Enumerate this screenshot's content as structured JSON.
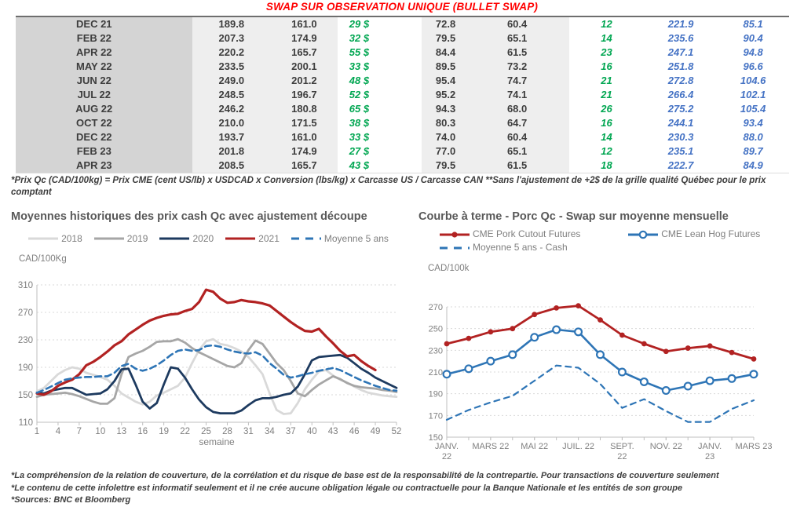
{
  "table": {
    "title": "SWAP SUR OBSERVATION UNIQUE (BULLET SWAP)",
    "rows": [
      {
        "month": "DEC 21",
        "cells": [
          "189.8",
          "161.0",
          "29 $",
          "72.8",
          "60.4",
          "12",
          "221.9",
          "85.1"
        ]
      },
      {
        "month": "FEB 22",
        "cells": [
          "207.3",
          "174.9",
          "32 $",
          "79.5",
          "65.1",
          "14",
          "235.6",
          "90.4"
        ]
      },
      {
        "month": "APR 22",
        "cells": [
          "220.2",
          "165.7",
          "55 $",
          "84.4",
          "61.5",
          "23",
          "247.1",
          "94.8"
        ]
      },
      {
        "month": "MAY 22",
        "cells": [
          "233.5",
          "200.1",
          "33 $",
          "89.5",
          "73.2",
          "16",
          "251.8",
          "96.6"
        ]
      },
      {
        "month": "JUN 22",
        "cells": [
          "249.0",
          "201.2",
          "48 $",
          "95.4",
          "74.7",
          "21",
          "272.8",
          "104.6"
        ]
      },
      {
        "month": "JUL 22",
        "cells": [
          "248.5",
          "196.7",
          "52 $",
          "95.2",
          "74.1",
          "21",
          "266.4",
          "102.1"
        ]
      },
      {
        "month": "AUG 22",
        "cells": [
          "246.2",
          "180.8",
          "65 $",
          "94.3",
          "68.0",
          "26",
          "275.2",
          "105.4"
        ]
      },
      {
        "month": "OCT 22",
        "cells": [
          "210.0",
          "171.5",
          "38 $",
          "80.3",
          "64.7",
          "16",
          "244.1",
          "93.4"
        ]
      },
      {
        "month": "DEC 22",
        "cells": [
          "193.7",
          "161.0",
          "33 $",
          "74.0",
          "60.4",
          "14",
          "230.3",
          "88.0"
        ]
      },
      {
        "month": "FEB 23",
        "cells": [
          "201.8",
          "174.9",
          "27 $",
          "77.0",
          "65.1",
          "12",
          "235.1",
          "89.7"
        ]
      },
      {
        "month": "APR 23",
        "cells": [
          "208.5",
          "165.7",
          "43 $",
          "79.5",
          "61.5",
          "18",
          "222.7",
          "84.9"
        ]
      }
    ],
    "footnote": "*Prix Qc (CAD/100kg) = Prix CME (cent US/lb) x USDCAD x Conversion (lbs/kg) x Carcasse US / Carcasse CAN **Sans l'ajustement de +2$ de la grille qualité Québec pour le prix comptant"
  },
  "colors": {
    "title_red": "#ff0000",
    "table_green": "#00a651",
    "table_blue": "#4472c4",
    "axis_gray": "#bfbfbf",
    "grid_gray": "#d9d9d9"
  },
  "chart_data": [
    {
      "type": "line",
      "title": "Moyennes historiques des prix cash Qc avec ajustement découpe",
      "unit_label": "CAD/100Kg",
      "xlabel": "semaine",
      "xmin": 1,
      "xmax": 52,
      "xticks": [
        1,
        4,
        7,
        10,
        13,
        16,
        19,
        22,
        25,
        28,
        31,
        34,
        37,
        40,
        43,
        46,
        49,
        52
      ],
      "ylim": [
        110,
        310
      ],
      "yticks": [
        110,
        150,
        190,
        230,
        270,
        310
      ],
      "grid": "dashed-horizontal",
      "legend_position": "top-center",
      "series": [
        {
          "name": "2018",
          "color": "#d9d9d9",
          "width": 2.8,
          "marker": "none",
          "values": [
            155,
            160,
            170,
            180,
            186,
            190,
            188,
            182,
            179,
            176,
            172,
            163,
            152,
            146,
            140,
            136,
            140,
            149,
            153,
            158,
            163,
            175,
            196,
            215,
            228,
            231,
            224,
            222,
            218,
            213,
            205,
            193,
            180,
            152,
            128,
            122,
            123,
            138,
            158,
            172,
            184,
            186,
            178,
            172,
            168,
            162,
            157,
            153,
            151,
            149,
            148,
            147
          ]
        },
        {
          "name": "2019",
          "color": "#a6a6a6",
          "width": 2.8,
          "marker": "none",
          "values": [
            147,
            150,
            151,
            152,
            153,
            151,
            148,
            144,
            140,
            137,
            137,
            145,
            180,
            205,
            210,
            214,
            220,
            227,
            228,
            228,
            231,
            226,
            218,
            212,
            207,
            202,
            197,
            192,
            190,
            196,
            215,
            229,
            224,
            210,
            196,
            186,
            170,
            152,
            148,
            157,
            165,
            171,
            177,
            173,
            167,
            163,
            161,
            160,
            159,
            157,
            156,
            154
          ]
        },
        {
          "name": "2020",
          "color": "#1d3a5f",
          "width": 2.8,
          "marker": "none",
          "values": [
            153,
            152,
            156,
            158,
            160,
            160,
            155,
            150,
            151,
            152,
            158,
            170,
            187,
            188,
            165,
            140,
            130,
            138,
            165,
            190,
            188,
            175,
            158,
            143,
            132,
            125,
            123,
            123,
            123,
            127,
            135,
            142,
            145,
            145,
            147,
            150,
            152,
            162,
            180,
            200,
            205,
            206,
            207,
            208,
            204,
            196,
            188,
            182,
            175,
            170,
            165,
            160
          ]
        },
        {
          "name": "2021",
          "color": "#b22222",
          "width": 3.2,
          "marker": "none",
          "values": [
            152,
            150,
            155,
            163,
            168,
            172,
            180,
            193,
            198,
            205,
            213,
            222,
            228,
            238,
            245,
            252,
            258,
            262,
            265,
            267,
            268,
            272,
            275,
            285,
            303,
            300,
            290,
            284,
            285,
            288,
            286,
            285,
            283,
            280,
            272,
            264,
            256,
            249,
            243,
            242,
            246,
            235,
            225,
            214,
            206,
            208,
            199,
            192,
            186,
            null,
            null,
            null
          ]
        },
        {
          "name": "Moyenne 5 ans",
          "color": "#2e75b6",
          "width": 2.6,
          "dash": "8 5",
          "marker": "none",
          "values": [
            153,
            157,
            162,
            167,
            172,
            174,
            175,
            176,
            176,
            177,
            177,
            182,
            192,
            195,
            188,
            185,
            188,
            193,
            200,
            208,
            214,
            216,
            214,
            215,
            221,
            222,
            220,
            216,
            213,
            211,
            210,
            212,
            207,
            196,
            188,
            179,
            175,
            177,
            180,
            182,
            185,
            187,
            189,
            186,
            181,
            176,
            171,
            167,
            163,
            160,
            157,
            156
          ]
        }
      ]
    },
    {
      "type": "line",
      "title": "Courbe à terme - Porc Qc - Swap sur moyenne mensuelle",
      "unit_label": "CAD/100k",
      "xmin": 0,
      "xmax": 14,
      "tick_every_point": true,
      "xticks": [
        {
          "pos": 0,
          "lines": [
            "JANV.",
            "22"
          ]
        },
        {
          "pos": 2,
          "lines": [
            "MARS 22"
          ]
        },
        {
          "pos": 4,
          "lines": [
            "MAI 22"
          ]
        },
        {
          "pos": 6,
          "lines": [
            "JUIL. 22"
          ]
        },
        {
          "pos": 8,
          "lines": [
            "SEPT.",
            "22"
          ]
        },
        {
          "pos": 10,
          "lines": [
            "NOV. 22"
          ]
        },
        {
          "pos": 12,
          "lines": [
            "JANV.",
            "23"
          ]
        },
        {
          "pos": 14,
          "lines": [
            "MARS 23"
          ]
        }
      ],
      "ylim": [
        150,
        270
      ],
      "yticks": [
        150,
        170,
        190,
        210,
        230,
        250,
        270
      ],
      "grid": "dashed-horizontal",
      "legend_position": "top-left",
      "series": [
        {
          "name": "CME Pork Cutout Futures",
          "color": "#b22222",
          "width": 2.8,
          "marker": "dot",
          "values": [
            236,
            241,
            247,
            250,
            263,
            269,
            271,
            258,
            244,
            236,
            229,
            232,
            234,
            228,
            222
          ]
        },
        {
          "name": "CME Lean Hog Futures",
          "color": "#2e75b6",
          "width": 2.6,
          "marker": "circle",
          "values": [
            208,
            213,
            220,
            226,
            242,
            249,
            247,
            226,
            210,
            201,
            193,
            197,
            202,
            204,
            208
          ]
        },
        {
          "name": "Moyenne 5 ans - Cash",
          "color": "#2e75b6",
          "width": 2.2,
          "dash": "7 6",
          "marker": "none",
          "values": [
            166,
            175,
            182,
            188,
            202,
            216,
            214,
            199,
            177,
            185,
            174,
            164,
            164,
            176,
            184
          ]
        }
      ]
    }
  ],
  "notes": [
    "*La compréhension de la relation de couverture, de la corrélation et du risque de base est de la responsabilité de la contrepartie. Pour transactions de couverture seulement",
    "*Le contenu de cette infolettre est informatif seulement et il ne crée aucune obligation légale ou contractuelle pour la Banque Nationale et les entités de son groupe",
    "*Sources: BNC et Bloomberg"
  ]
}
